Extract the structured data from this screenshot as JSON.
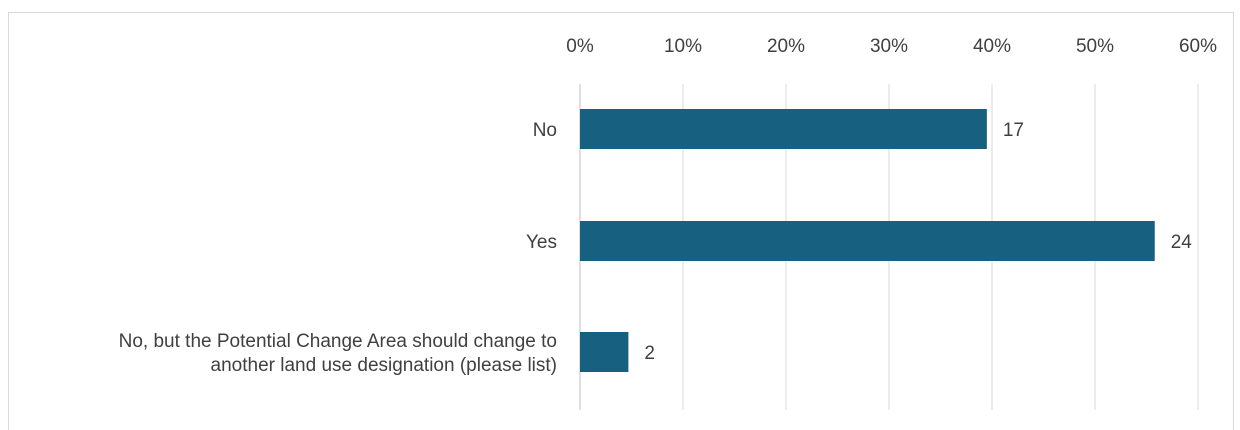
{
  "chart_data": {
    "type": "bar",
    "orientation": "horizontal",
    "categories": [
      "No",
      "Yes",
      "No, but the Potential Change Area should change to another land use designation (please list)"
    ],
    "category_lines": [
      [
        "No"
      ],
      [
        "Yes"
      ],
      [
        "No, but the Potential Change Area should change to",
        "another land use designation (please list)"
      ]
    ],
    "percent_values": [
      39.5,
      55.8,
      4.7
    ],
    "data_labels": [
      "17",
      "24",
      "2"
    ],
    "x_ticks": [
      "0%",
      "10%",
      "20%",
      "30%",
      "40%",
      "50%",
      "60%"
    ],
    "xlim": [
      0,
      60
    ],
    "x_axis_position": "top",
    "grid": true,
    "legend": "none",
    "colors": {
      "bar": "#17607f",
      "grid": "#d9d9d9",
      "text": "#404040"
    }
  }
}
